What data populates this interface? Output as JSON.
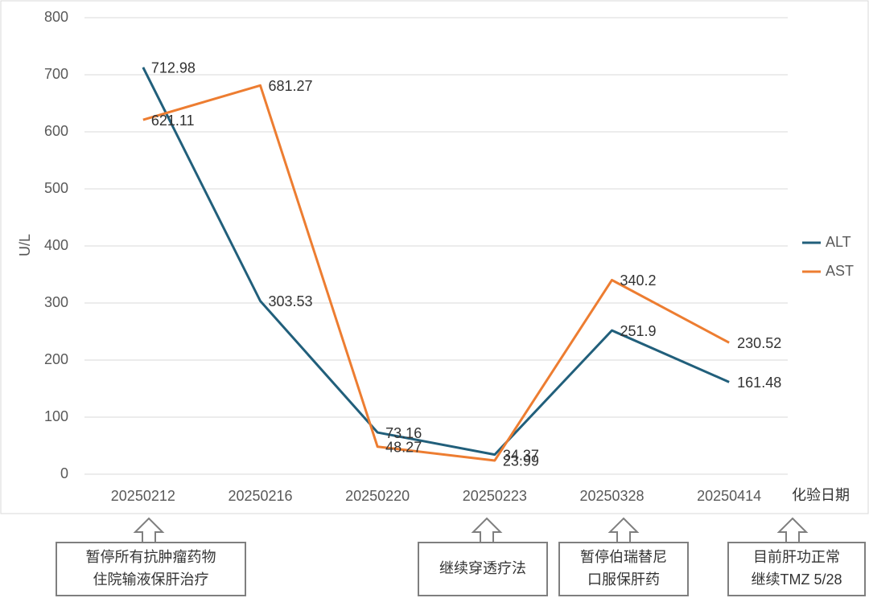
{
  "chart_data": {
    "type": "line",
    "y_label": "U/L",
    "x_label": "化验日期",
    "categories": [
      "20250212",
      "20250216",
      "20250220",
      "20250223",
      "20250328",
      "20250414"
    ],
    "series": [
      {
        "name": "ALT",
        "color": "#215f7b",
        "values": [
          712.98,
          303.53,
          73.16,
          34.37,
          251.9,
          161.48
        ]
      },
      {
        "name": "AST",
        "color": "#ed7d31",
        "values": [
          621.11,
          681.27,
          48.27,
          23.99,
          340.2,
          230.52
        ]
      }
    ],
    "ylim": [
      0,
      800
    ],
    "yticks": [
      0,
      100,
      200,
      300,
      400,
      500,
      600,
      700,
      800
    ],
    "grid": true,
    "legend": "right",
    "annotations": [
      {
        "lines": [
          "暂停所有抗肿瘤药物",
          "住院输液保肝治疗"
        ]
      },
      {
        "lines": [
          "继续穿透疗法"
        ]
      },
      {
        "lines": [
          "暂停伯瑞替尼",
          "口服保肝药"
        ]
      },
      {
        "lines": [
          "目前肝功正常",
          "继续TMZ 5/28"
        ]
      }
    ]
  }
}
